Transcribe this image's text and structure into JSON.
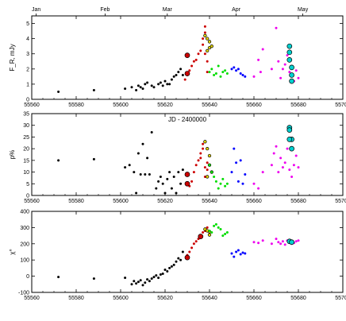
{
  "chart_data": [
    {
      "type": "scatter",
      "xlabel": "JD - 2400000",
      "top_axis_labels": [
        "Jan",
        "Feb",
        "Mar",
        "Apr",
        "May"
      ],
      "top_axis_positions": [
        55562,
        55593,
        55621,
        55652,
        55682
      ],
      "xlim": [
        55560,
        55700
      ],
      "xticks": [
        55560,
        55580,
        55600,
        55620,
        55640,
        55660,
        55680,
        55700
      ],
      "ylabel": "F_R, mJy",
      "ylim": [
        0,
        5.5
      ],
      "yticks": [
        0,
        1,
        2,
        3,
        4,
        5
      ],
      "grid": false,
      "series": [
        {
          "color": "#000000",
          "marker": "dot",
          "x": [
            55572,
            55588,
            55602,
            55605,
            55607,
            55608,
            55609,
            55610,
            55611,
            55612,
            55614,
            55615,
            55617,
            55618,
            55619,
            55620,
            55621,
            55622,
            55623,
            55624,
            55625,
            55626,
            55627,
            55628
          ],
          "y": [
            0.5,
            0.6,
            0.7,
            0.8,
            0.6,
            0.9,
            0.8,
            0.7,
            1.0,
            1.1,
            0.9,
            0.8,
            1.0,
            1.1,
            0.9,
            1.2,
            1.0,
            1.0,
            1.3,
            1.5,
            1.6,
            1.8,
            2.0,
            1.6
          ]
        },
        {
          "color": "#cc0000",
          "marker": "dot",
          "x": [
            55629,
            55630,
            55631,
            55632,
            55633,
            55634,
            55635,
            55636,
            55637,
            55637,
            55638,
            55638,
            55638,
            55639,
            55639
          ],
          "y": [
            1.3,
            1.6,
            1.9,
            2.2,
            2.5,
            2.6,
            3.0,
            3.2,
            3.6,
            4.0,
            4.4,
            4.8,
            3.0,
            2.5,
            1.8
          ]
        },
        {
          "color": "#cc0000",
          "marker": "big",
          "x": [
            55630,
            55630
          ],
          "y": [
            2.9,
            1.7
          ]
        },
        {
          "color": "#e8d800",
          "marker": "open",
          "x": [
            55638,
            55639,
            55640,
            55640,
            55639,
            55641
          ],
          "y": [
            4.2,
            4.0,
            3.8,
            3.4,
            3.2,
            3.5
          ]
        },
        {
          "color": "#00dd00",
          "marker": "dot",
          "x": [
            55640,
            55641,
            55642,
            55643,
            55644,
            55645,
            55646,
            55647,
            55648
          ],
          "y": [
            1.8,
            2.0,
            1.6,
            1.7,
            2.2,
            1.5,
            1.8,
            1.9,
            1.7
          ]
        },
        {
          "color": "#0000ff",
          "marker": "dot",
          "x": [
            55650,
            55651,
            55652,
            55653,
            55654,
            55655,
            55656
          ],
          "y": [
            2.0,
            2.1,
            1.9,
            2.0,
            1.7,
            1.6,
            1.5
          ]
        },
        {
          "color": "#ee00ee",
          "marker": "dot",
          "x": [
            55660,
            55662,
            55663,
            55664,
            55668,
            55670,
            55671,
            55672,
            55673,
            55674,
            55675,
            55676,
            55677,
            55678,
            55679,
            55680
          ],
          "y": [
            1.5,
            2.6,
            1.8,
            3.3,
            2.0,
            4.7,
            2.5,
            1.4,
            2.0,
            2.3,
            2.9,
            1.8,
            1.6,
            1.2,
            1.9,
            1.4
          ]
        },
        {
          "color": "#00d0d0",
          "marker": "big",
          "x": [
            55676,
            55676,
            55677,
            55677,
            55677,
            55676
          ],
          "y": [
            3.5,
            3.1,
            2.1,
            1.6,
            1.2,
            2.6
          ]
        }
      ]
    },
    {
      "type": "scatter",
      "xlabel": "",
      "xlim": [
        55560,
        55700
      ],
      "xticks": [
        55560,
        55580,
        55600,
        55620,
        55640,
        55660,
        55680,
        55700
      ],
      "ylabel": "p%",
      "ylim": [
        0,
        35
      ],
      "yticks": [
        0,
        5,
        10,
        15,
        20,
        25,
        30,
        35
      ],
      "grid": false,
      "series": [
        {
          "color": "#000000",
          "marker": "dot",
          "x": [
            55572,
            55588,
            55602,
            55604,
            55606,
            55607,
            55608,
            55609,
            55610,
            55611,
            55612,
            55613,
            55614,
            55616,
            55617,
            55618,
            55619,
            55620,
            55621,
            55622,
            55623,
            55624,
            55625,
            55626,
            55627,
            55628
          ],
          "y": [
            15,
            15.5,
            12,
            13,
            10,
            1,
            18,
            9,
            22,
            9,
            16,
            9,
            27,
            3,
            6,
            8,
            5,
            1,
            7,
            10,
            3,
            8,
            1,
            10,
            5,
            11
          ]
        },
        {
          "color": "#cc0000",
          "marker": "dot",
          "x": [
            55631,
            55632,
            55633,
            55634,
            55635,
            55636,
            55636,
            55637,
            55637,
            55638,
            55638,
            55639,
            55639
          ],
          "y": [
            4,
            6,
            10,
            13,
            15,
            16,
            18,
            20,
            22,
            8,
            12,
            14,
            11
          ]
        },
        {
          "color": "#cc0000",
          "marker": "big",
          "x": [
            55630,
            55630
          ],
          "y": [
            9,
            5
          ]
        },
        {
          "color": "#e8d800",
          "marker": "open",
          "x": [
            55638,
            55639,
            55640,
            55640,
            55641,
            55639
          ],
          "y": [
            23,
            20,
            17,
            13,
            10,
            8
          ]
        },
        {
          "color": "#00dd00",
          "marker": "dot",
          "x": [
            55640,
            55641,
            55642,
            55643,
            55644,
            55645,
            55646,
            55647,
            55648
          ],
          "y": [
            13,
            10,
            8,
            6,
            3,
            5,
            7,
            4,
            5
          ]
        },
        {
          "color": "#0000ff",
          "marker": "dot",
          "x": [
            55650,
            55651,
            55652,
            55653,
            55654,
            55655,
            55656
          ],
          "y": [
            10,
            20,
            14,
            6,
            15,
            5,
            9
          ]
        },
        {
          "color": "#ee00ee",
          "marker": "dot",
          "x": [
            55660,
            55662,
            55664,
            55668,
            55669,
            55670,
            55671,
            55672,
            55673,
            55674,
            55675,
            55676,
            55677,
            55678,
            55679,
            55680
          ],
          "y": [
            5,
            3,
            10,
            13,
            18,
            21,
            10,
            16,
            12,
            14,
            20,
            11,
            8,
            13,
            17,
            12
          ]
        },
        {
          "color": "#00d0d0",
          "marker": "big",
          "x": [
            55676,
            55676,
            55677,
            55677,
            55676
          ],
          "y": [
            29,
            28,
            24,
            20,
            24
          ]
        }
      ]
    },
    {
      "type": "scatter",
      "xlabel": "",
      "xlim": [
        55560,
        55700
      ],
      "xticks": [
        55560,
        55580,
        55600,
        55620,
        55640,
        55660,
        55680,
        55700
      ],
      "ylabel": "χ°",
      "ylim": [
        -100,
        400
      ],
      "yticks": [
        -100,
        0,
        100,
        200,
        300,
        400
      ],
      "grid": false,
      "series": [
        {
          "color": "#000000",
          "marker": "dot",
          "x": [
            55572,
            55588,
            55602,
            55605,
            55606,
            55607,
            55608,
            55609,
            55610,
            55611,
            55612,
            55613,
            55614,
            55615,
            55616,
            55617,
            55618,
            55619,
            55620,
            55621,
            55622,
            55623,
            55624,
            55625,
            55626,
            55627,
            55628
          ],
          "y": [
            -5,
            -15,
            -10,
            -50,
            -30,
            -45,
            -35,
            -25,
            -55,
            -40,
            -20,
            -30,
            -15,
            -5,
            5,
            -10,
            10,
            15,
            40,
            30,
            50,
            60,
            70,
            90,
            110,
            100,
            150
          ]
        },
        {
          "color": "#cc0000",
          "marker": "dot",
          "x": [
            55630,
            55631,
            55632,
            55633,
            55634,
            55635,
            55636,
            55637,
            55638,
            55639
          ],
          "y": [
            130,
            150,
            175,
            200,
            215,
            230,
            250,
            270,
            280,
            300
          ]
        },
        {
          "color": "#cc0000",
          "marker": "big",
          "x": [
            55630,
            55636
          ],
          "y": [
            115,
            245
          ]
        },
        {
          "color": "#e8d800",
          "marker": "open",
          "x": [
            55638,
            55639,
            55640,
            55640
          ],
          "y": [
            290,
            280,
            275,
            255
          ]
        },
        {
          "color": "#00dd00",
          "marker": "dot",
          "x": [
            55640,
            55641,
            55642,
            55643,
            55644,
            55645,
            55646,
            55647,
            55648
          ],
          "y": [
            280,
            270,
            310,
            320,
            300,
            290,
            250,
            260,
            270
          ]
        },
        {
          "color": "#0000ff",
          "marker": "dot",
          "x": [
            55650,
            55651,
            55652,
            55653,
            55654,
            55655,
            55656
          ],
          "y": [
            140,
            120,
            150,
            160,
            135,
            145,
            140
          ]
        },
        {
          "color": "#ee00ee",
          "marker": "dot",
          "x": [
            55660,
            55662,
            55664,
            55668,
            55670,
            55671,
            55672,
            55673,
            55674,
            55675,
            55676,
            55677,
            55678,
            55679,
            55680
          ],
          "y": [
            210,
            205,
            220,
            200,
            230,
            210,
            200,
            215,
            195,
            220,
            210,
            200,
            205,
            215,
            220
          ]
        },
        {
          "color": "#00d0d0",
          "marker": "big",
          "x": [
            55676,
            55677
          ],
          "y": [
            215,
            210
          ]
        }
      ]
    }
  ]
}
